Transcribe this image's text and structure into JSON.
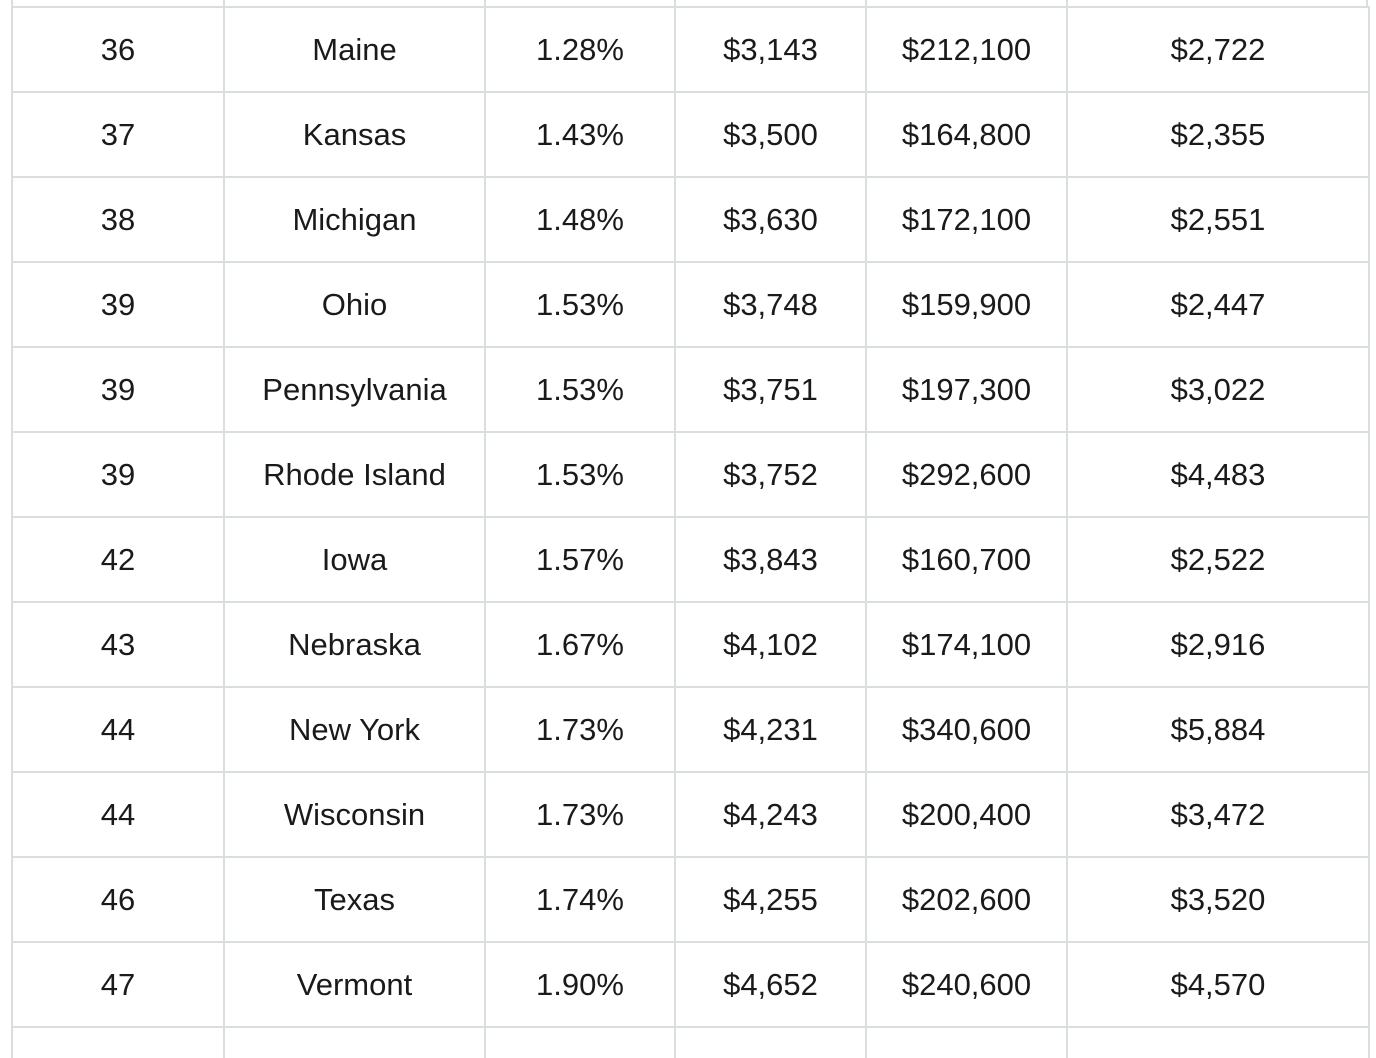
{
  "table": {
    "rows": [
      [
        "36",
        "Maine",
        "1.28%",
        "$3,143",
        "$212,100",
        "$2,722"
      ],
      [
        "37",
        "Kansas",
        "1.43%",
        "$3,500",
        "$164,800",
        "$2,355"
      ],
      [
        "38",
        "Michigan",
        "1.48%",
        "$3,630",
        "$172,100",
        "$2,551"
      ],
      [
        "39",
        "Ohio",
        "1.53%",
        "$3,748",
        "$159,900",
        "$2,447"
      ],
      [
        "39",
        "Pennsylvania",
        "1.53%",
        "$3,751",
        "$197,300",
        "$3,022"
      ],
      [
        "39",
        "Rhode Island",
        "1.53%",
        "$3,752",
        "$292,600",
        "$4,483"
      ],
      [
        "42",
        "Iowa",
        "1.57%",
        "$3,843",
        "$160,700",
        "$2,522"
      ],
      [
        "43",
        "Nebraska",
        "1.67%",
        "$4,102",
        "$174,100",
        "$2,916"
      ],
      [
        "44",
        "New York",
        "1.73%",
        "$4,231",
        "$340,600",
        "$5,884"
      ],
      [
        "44",
        "Wisconsin",
        "1.73%",
        "$4,243",
        "$200,400",
        "$3,472"
      ],
      [
        "46",
        "Texas",
        "1.74%",
        "$4,255",
        "$202,600",
        "$3,520"
      ],
      [
        "47",
        "Vermont",
        "1.90%",
        "$4,652",
        "$240,600",
        "$4,570"
      ]
    ]
  }
}
